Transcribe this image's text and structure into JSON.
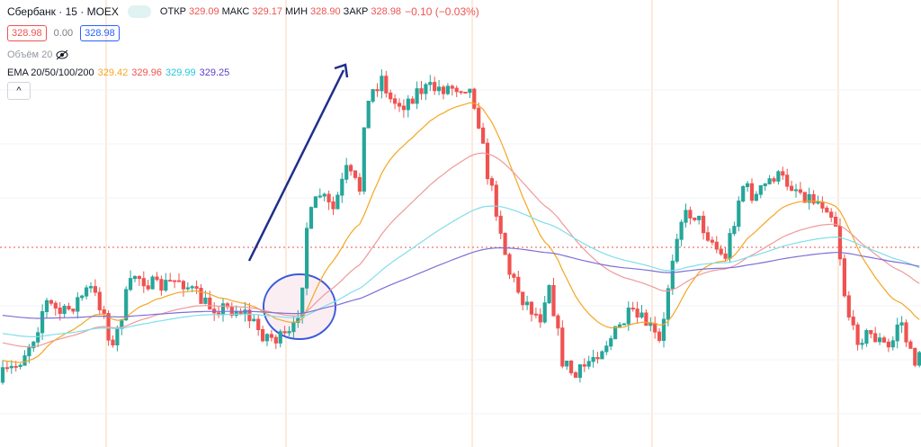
{
  "header": {
    "symbol": "Сбербанк · 15 · MOEX",
    "ohlc": [
      {
        "label": "ОТКР",
        "value": "329.09"
      },
      {
        "label": "МАКС",
        "value": "329.17"
      },
      {
        "label": "МИН",
        "value": "328.90"
      },
      {
        "label": "ЗАКР",
        "value": "328.98"
      }
    ],
    "change": "−0.10 (−0.03%)"
  },
  "quotes": {
    "sell": "328.98",
    "spread": "0.00",
    "buy": "328.98"
  },
  "volume": {
    "label": "Объём 20"
  },
  "ema": {
    "label": "EMA 20/50/100/200",
    "values": [
      "329.42",
      "329.96",
      "329.99",
      "329.25"
    ]
  }
}
